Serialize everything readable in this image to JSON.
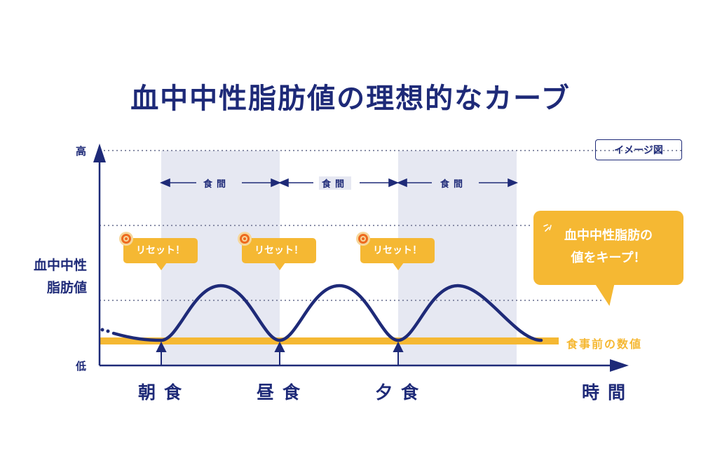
{
  "title": "血中中性脂肪値の理想的なカーブ",
  "badge": "イメージ図",
  "y_axis": {
    "label_line1": "血中中性",
    "label_line2": "脂肪値",
    "high": "高",
    "low": "低"
  },
  "x_axis": {
    "meals": [
      "朝食",
      "昼食",
      "夕食"
    ],
    "label": "時間"
  },
  "interval_label": "食間",
  "reset_label": "リセット！",
  "baseline_label": "食事前の数値",
  "callout": {
    "line1": "血中中性脂肪の",
    "line2": "値をキープ！"
  },
  "colors": {
    "navy": "#1e2a78",
    "accent": "#f5b833",
    "band": "#e6e8f2",
    "reset_icon": "#ee6a1f"
  },
  "icons": [
    "target-icon",
    "sparkle-icon"
  ]
}
